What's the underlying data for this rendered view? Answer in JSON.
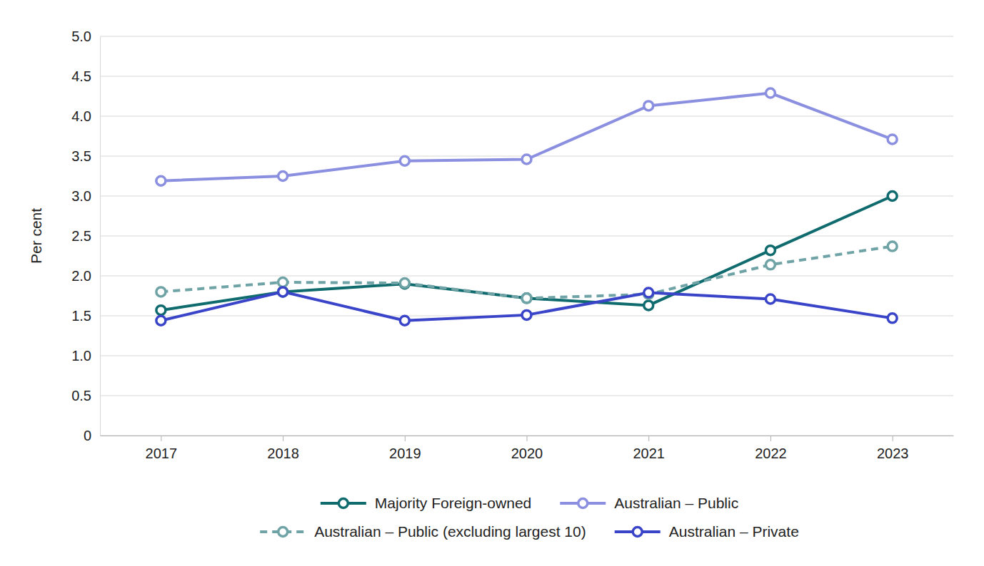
{
  "chart_data": {
    "type": "line",
    "y_label": "Per cent",
    "categories": [
      "2017",
      "2018",
      "2019",
      "2020",
      "2021",
      "2022",
      "2023"
    ],
    "ylim": [
      0,
      5
    ],
    "yticks": [
      0,
      0.5,
      {
        "value": 1,
        "label": "1.0"
      },
      1.5,
      {
        "value": 2,
        "label": "2.0"
      },
      2.5,
      {
        "value": 3,
        "label": "3.0"
      },
      3.5,
      {
        "value": 4,
        "label": "4.0"
      },
      4.5,
      {
        "value": 5,
        "label": "5.0"
      }
    ],
    "grid": true,
    "legend": "bottom",
    "marker": "circle",
    "series": [
      {
        "name": "Majority Foreign-owned",
        "color": "#0f6b6e",
        "line_style": "solid",
        "values": [
          1.57,
          1.8,
          1.9,
          1.72,
          1.63,
          2.32,
          3.0
        ]
      },
      {
        "name": "Australian – Public",
        "color": "#8b8fe0",
        "line_style": "solid",
        "values": [
          3.19,
          3.25,
          3.44,
          3.46,
          4.13,
          4.29,
          3.71
        ]
      },
      {
        "name": "Australian – Public (excluding largest 10)",
        "color": "#6fa3a6",
        "line_style": "dashed",
        "values": [
          1.8,
          1.92,
          1.91,
          1.72,
          1.77,
          2.14,
          2.37
        ]
      },
      {
        "name": "Australian – Private",
        "color": "#3a44c8",
        "line_style": "solid",
        "values": [
          1.44,
          1.8,
          1.44,
          1.51,
          1.79,
          1.71,
          1.47
        ]
      }
    ]
  }
}
